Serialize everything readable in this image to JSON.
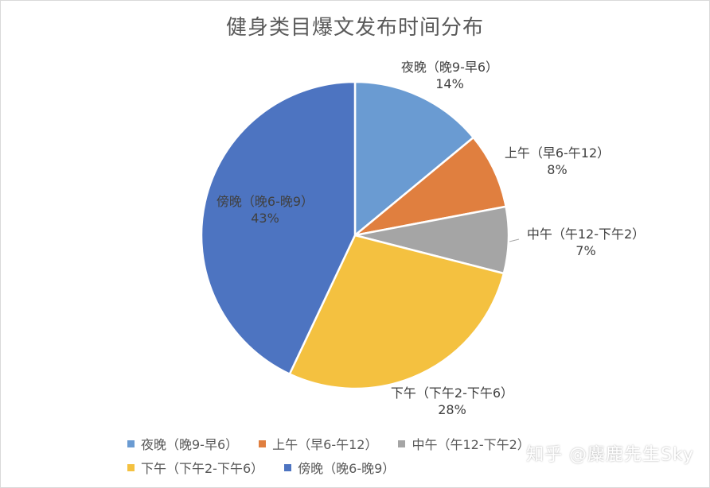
{
  "chart_data": {
    "type": "pie",
    "title": "健身类目爆文发布时间分布",
    "slices": [
      {
        "name": "夜晚（晚9-早6）",
        "value": 14,
        "label": "14%",
        "color": "#6a9bd2"
      },
      {
        "name": "上午（早6-午12）",
        "value": 8,
        "label": "8%",
        "color": "#e07f3f"
      },
      {
        "name": "中午（午12-下午2）",
        "value": 7,
        "label": "7%",
        "color": "#a5a5a5"
      },
      {
        "name": "下午（下午2-下午6）",
        "value": 28,
        "label": "28%",
        "color": "#f4c140"
      },
      {
        "name": "傍晚（晚6-晚9）",
        "value": 43,
        "label": "43%",
        "color": "#4d74c1"
      }
    ],
    "legend_position": "bottom"
  },
  "watermark": "知乎 @麋鹿先生Sky"
}
